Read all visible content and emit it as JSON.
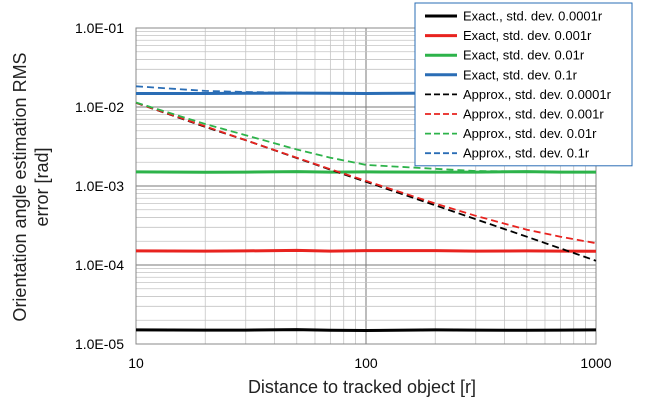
{
  "chart_data": {
    "type": "line",
    "title": "",
    "xlabel": "Distance to tracked object [r]",
    "ylabel_line1": "Orientation angle estimation RMS",
    "ylabel_line2": "error [rad]",
    "x_scale": "log",
    "y_scale": "log",
    "xlim": [
      10,
      1000
    ],
    "ylim": [
      1e-05,
      0.1
    ],
    "x_ticks": [
      10,
      100,
      1000
    ],
    "x_tick_labels": [
      "10",
      "100",
      "1000"
    ],
    "y_ticks": [
      1e-05,
      0.0001,
      0.001,
      0.01,
      0.1
    ],
    "y_tick_labels": [
      "1.0E-05",
      "1.0E-04",
      "1.0E-03",
      "1.0E-02",
      "1.0E-01"
    ],
    "grid": true,
    "legend_position": "top-right",
    "series": [
      {
        "name": "Exact., std. dev. 0.0001r",
        "color": "#000000",
        "style": "solid",
        "x": [
          10,
          20,
          30,
          50,
          70,
          100,
          200,
          300,
          500,
          700,
          1000
        ],
        "y": [
          1.51e-05,
          1.5e-05,
          1.5e-05,
          1.52e-05,
          1.49e-05,
          1.48e-05,
          1.51e-05,
          1.5e-05,
          1.49e-05,
          1.5e-05,
          1.51e-05
        ]
      },
      {
        "name": "Exact, std. dev. 0.001r",
        "color": "#e8231f",
        "style": "solid",
        "x": [
          10,
          20,
          30,
          50,
          70,
          100,
          200,
          300,
          500,
          700,
          1000
        ],
        "y": [
          0.000151,
          0.00015,
          0.000151,
          0.000153,
          0.00015,
          0.000152,
          0.000152,
          0.00015,
          0.000151,
          0.00015,
          0.000149
        ]
      },
      {
        "name": "Exact, std. dev. 0.01r",
        "color": "#2db34a",
        "style": "solid",
        "x": [
          10,
          20,
          30,
          50,
          70,
          100,
          200,
          300,
          500,
          700,
          1000
        ],
        "y": [
          0.00151,
          0.00149,
          0.0015,
          0.00152,
          0.0015,
          0.00151,
          0.0015,
          0.0015,
          0.00152,
          0.0015,
          0.0015
        ]
      },
      {
        "name": "Exact, std. dev. 0.1r",
        "color": "#2a6db5",
        "style": "solid",
        "x": [
          10,
          20,
          30,
          50,
          70,
          100,
          200,
          300,
          500,
          700,
          1000
        ],
        "y": [
          0.0148,
          0.0148,
          0.0149,
          0.015,
          0.0149,
          0.0148,
          0.015,
          0.0149,
          0.015,
          0.0149,
          0.015
        ]
      },
      {
        "name": "Approx., std. dev. 0.0001r",
        "color": "#000000",
        "style": "dashed",
        "x": [
          10,
          20,
          30,
          50,
          70,
          100,
          200,
          300,
          500,
          700,
          1000
        ],
        "y": [
          0.0113,
          0.0056,
          0.0038,
          0.00226,
          0.00161,
          0.00113,
          0.00057,
          0.00038,
          0.000228,
          0.000162,
          0.000113
        ]
      },
      {
        "name": "Approx., std. dev. 0.001r",
        "color": "#e8231f",
        "style": "dashed",
        "x": [
          10,
          20,
          30,
          50,
          70,
          100,
          200,
          300,
          500,
          700,
          1000
        ],
        "y": [
          0.0113,
          0.0057,
          0.0038,
          0.00228,
          0.00163,
          0.00116,
          0.0006,
          0.00042,
          0.00028,
          0.000228,
          0.000189
        ]
      },
      {
        "name": "Approx., std. dev. 0.01r",
        "color": "#2db34a",
        "style": "dashed",
        "x": [
          10,
          20,
          30,
          50,
          70,
          100,
          200,
          300,
          500,
          700,
          1000
        ],
        "y": [
          0.0114,
          0.0061,
          0.0044,
          0.0029,
          0.00228,
          0.00185,
          0.00165,
          0.00155,
          0.00152,
          0.00151,
          0.0015
        ]
      },
      {
        "name": "Approx., std. dev. 0.1r",
        "color": "#2a6db5",
        "style": "dashed",
        "x": [
          10,
          20,
          30,
          50,
          70,
          100,
          200,
          300,
          500,
          700,
          1000
        ],
        "y": [
          0.0183,
          0.016,
          0.0155,
          0.0151,
          0.015,
          0.0149,
          0.015,
          0.015,
          0.015,
          0.015,
          0.015
        ]
      }
    ]
  }
}
